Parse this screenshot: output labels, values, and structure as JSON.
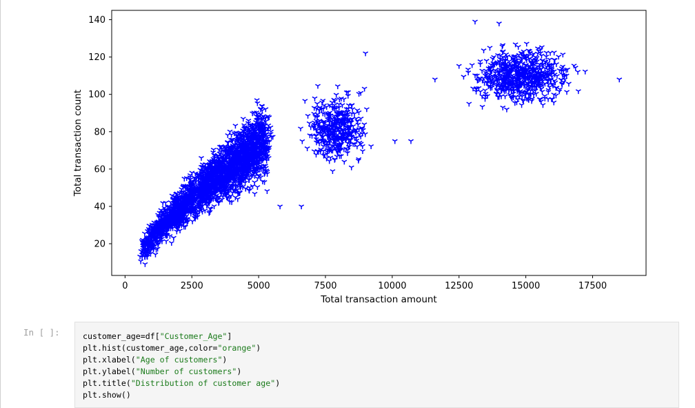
{
  "chart_data": {
    "type": "scatter",
    "title": "",
    "xlabel": "Total transaction amount",
    "ylabel": "Total transaction count",
    "xlim": [
      -500,
      19500
    ],
    "ylim": [
      3,
      145
    ],
    "xticks": [
      0,
      2500,
      5000,
      7500,
      10000,
      12500,
      15000,
      17500
    ],
    "yticks": [
      20,
      40,
      60,
      80,
      100,
      120,
      140
    ],
    "marker": "tri_down",
    "color": "#0000ff",
    "grid": false,
    "clusters": [
      {
        "x_range": [
          550,
          5600
        ],
        "y_range": [
          10,
          103
        ],
        "shape": "diagonal-band"
      },
      {
        "x_range": [
          6300,
          10700
        ],
        "y_range": [
          50,
          113
        ],
        "shape": "blob"
      },
      {
        "x_range": [
          11600,
          18600
        ],
        "y_range": [
          80,
          139
        ],
        "shape": "blob"
      }
    ],
    "outliers": [
      {
        "x": 5800,
        "y": 40
      },
      {
        "x": 6600,
        "y": 40
      },
      {
        "x": 9000,
        "y": 122
      },
      {
        "x": 10100,
        "y": 75
      },
      {
        "x": 10700,
        "y": 75
      },
      {
        "x": 11600,
        "y": 108
      },
      {
        "x": 18500,
        "y": 108
      },
      {
        "x": 13100,
        "y": 139
      },
      {
        "x": 14000,
        "y": 138
      }
    ]
  },
  "notebook": {
    "prompt": "In [ ]:",
    "code_lines": [
      [
        {
          "t": "customer_age=df["
        },
        {
          "t": "\"Customer_Age\"",
          "s": true
        },
        {
          "t": "]"
        }
      ],
      [
        {
          "t": "plt.hist(customer_age,color="
        },
        {
          "t": "\"orange\"",
          "s": true
        },
        {
          "t": ")"
        }
      ],
      [
        {
          "t": "plt.xlabel("
        },
        {
          "t": "\"Age of customers\"",
          "s": true
        },
        {
          "t": ")"
        }
      ],
      [
        {
          "t": "plt.ylabel("
        },
        {
          "t": "\"Number of customers\"",
          "s": true
        },
        {
          "t": ")"
        }
      ],
      [
        {
          "t": "plt.title("
        },
        {
          "t": "\"Distribution of customer age\"",
          "s": true
        },
        {
          "t": ")"
        }
      ],
      [
        {
          "t": "plt.show()"
        }
      ]
    ]
  }
}
